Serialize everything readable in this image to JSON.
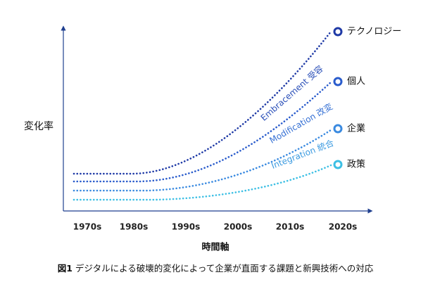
{
  "y_axis_label": "変化率",
  "x_axis_label": "時間軸",
  "x_categories": [
    "1970s",
    "1980s",
    "1990s",
    "2000s",
    "2010s",
    "2020s"
  ],
  "curves": [
    {
      "label": "Embracement 受容",
      "end_label": "テクノロジー"
    },
    {
      "label": "Modification 改変",
      "end_label": "個人"
    },
    {
      "label": "Integration 統合",
      "end_label": "企業"
    },
    {
      "label": null,
      "end_label": "政策"
    }
  ],
  "caption": {
    "figure": "図1",
    "text": "デジタルによる破壊的変化によって企業が直面する課題と新興技術への対応"
  }
}
